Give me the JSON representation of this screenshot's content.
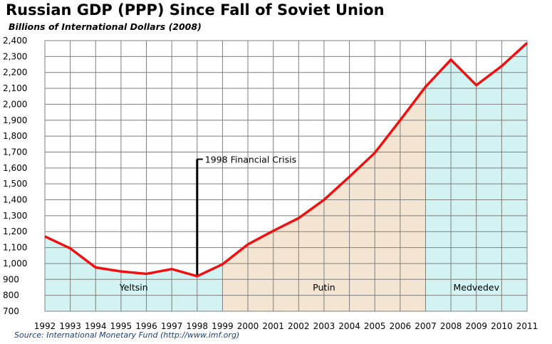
{
  "chart_data": {
    "type": "line",
    "title": "Russian  GDP (PPP) Since Fall of Soviet Union",
    "subtitle": "Billions of International Dollars (2008)",
    "source": "Source: International Monetary Fund (http://www.imf.org)",
    "x": [
      "1992",
      "1993",
      "1994",
      "1995",
      "1996",
      "1997",
      "1998",
      "1999",
      "2000",
      "2001",
      "2002",
      "2003",
      "2004",
      "2005",
      "2006",
      "2007",
      "2008",
      "2009",
      "2010",
      "2011"
    ],
    "y_ticks": [
      "700",
      "800",
      "900",
      "1,000",
      "1,100",
      "1,200",
      "1,300",
      "1,400",
      "1,500",
      "1,600",
      "1,700",
      "1,800",
      "1,900",
      "2,000",
      "2,100",
      "2,200",
      "2,300",
      "2,400"
    ],
    "ylim": [
      700,
      2400
    ],
    "grid": true,
    "series": [
      {
        "color": "#ee1111",
        "values": [
          1170,
          1095,
          975,
          950,
          935,
          965,
          920,
          995,
          1120,
          1205,
          1285,
          1400,
          1545,
          1695,
          1900,
          2110,
          2280,
          2120,
          2240,
          2385
        ]
      }
    ],
    "regions": [
      {
        "label": "Yeltsin",
        "from": "1992",
        "to": "1999",
        "color": "#d3f2f2"
      },
      {
        "label": "Putin",
        "from": "1999",
        "to": "2007",
        "color": "#f4e5d2"
      },
      {
        "label": "Medvedev",
        "from": "2007",
        "to": "2011",
        "color": "#d3f2f2"
      }
    ],
    "annotations": [
      {
        "label": "1998 Financial Crisis",
        "x": "1998",
        "top": 1655
      }
    ]
  }
}
